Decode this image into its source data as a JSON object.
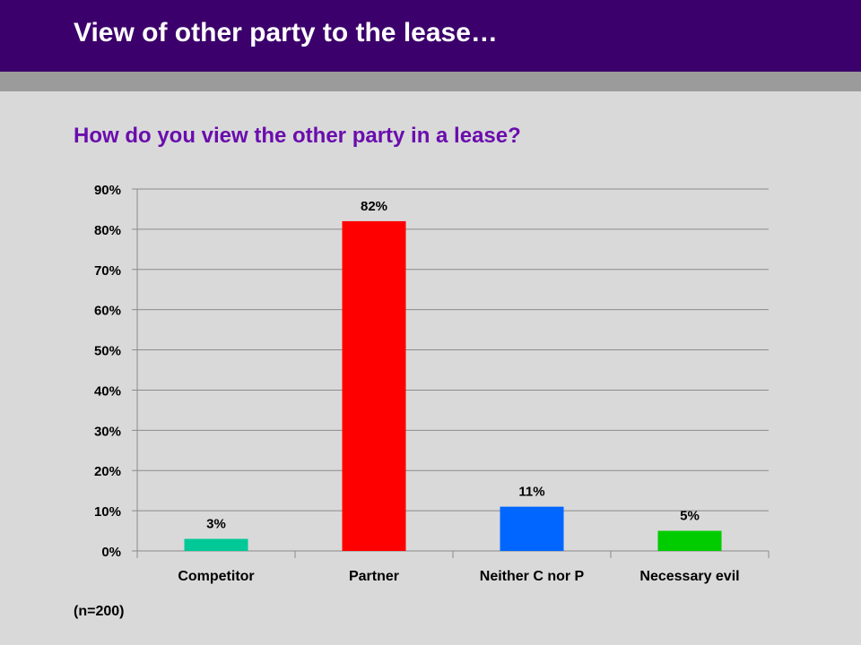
{
  "header": {
    "title": "View of other party to the lease…"
  },
  "footnote": "(n=200)",
  "colors": {
    "header_bg": "#3b006b",
    "subtitle": "#6a0dad"
  },
  "chart_data": {
    "type": "bar",
    "title": "How do you view the other party in a lease?",
    "xlabel": "",
    "ylabel": "",
    "categories": [
      "Competitor",
      "Partner",
      "Neither C nor P",
      "Necessary evil"
    ],
    "values": [
      0.03,
      0.82,
      0.11,
      0.05
    ],
    "data_labels": [
      "3%",
      "82%",
      "11%",
      "5%"
    ],
    "bar_colors": [
      "#00c896",
      "#ff0000",
      "#0066ff",
      "#00cc00"
    ],
    "ylim": [
      0,
      0.9
    ],
    "yticks": [
      0,
      0.1,
      0.2,
      0.3,
      0.4,
      0.5,
      0.6,
      0.7,
      0.8,
      0.9
    ],
    "ytick_labels": [
      "0%",
      "10%",
      "20%",
      "30%",
      "40%",
      "50%",
      "60%",
      "70%",
      "80%",
      "90%"
    ],
    "grid": true,
    "legend": "none"
  }
}
